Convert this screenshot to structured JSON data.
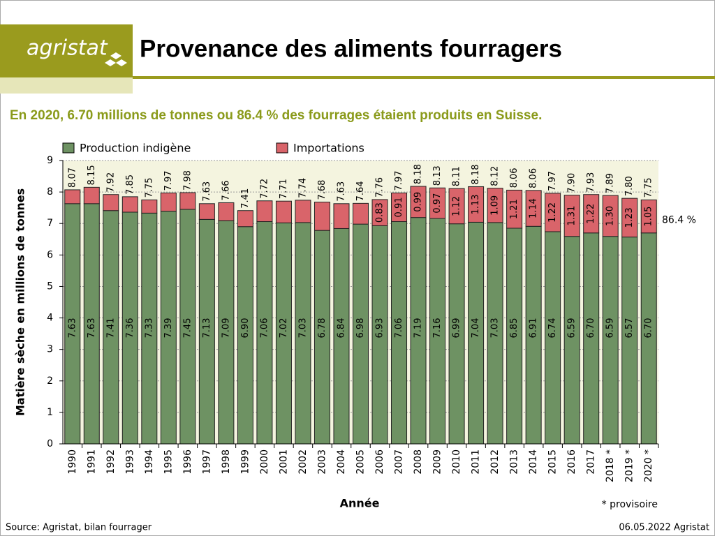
{
  "brand": "agristat",
  "chart_data": {
    "type": "stacked_bar",
    "title": "Provenance des aliments fourragers",
    "subtitle": "En 2020, 6.70 millions de tonnes ou 86.4 % des fourrages étaient produits en Suisse.",
    "ylabel": "Matière sèche en millions de tonnes",
    "xlabel": "Année",
    "categories": [
      "1990",
      "1991",
      "1992",
      "1993",
      "1994",
      "1995",
      "1996",
      "1997",
      "1998",
      "1999",
      "2000",
      "2001",
      "2002",
      "2003",
      "2004",
      "2005",
      "2006",
      "2007",
      "2008",
      "2009",
      "2010",
      "2011",
      "2012",
      "2013",
      "2014",
      "2015",
      "2016",
      "2017",
      "2018 *",
      "2019 *",
      "2020 *"
    ],
    "series": [
      {
        "name": "Production indigène",
        "color": "#6e9263",
        "values": [
          7.63,
          7.63,
          7.41,
          7.36,
          7.33,
          7.39,
          7.45,
          7.13,
          7.09,
          6.9,
          7.06,
          7.02,
          7.03,
          6.78,
          6.84,
          6.98,
          6.93,
          7.06,
          7.19,
          7.16,
          6.99,
          7.04,
          7.03,
          6.85,
          6.91,
          6.74,
          6.59,
          6.7,
          6.59,
          6.57,
          6.7
        ],
        "value_labels": [
          "7.63",
          "7.63",
          "7.41",
          "7.36",
          "7.33",
          "7.39",
          "7.45",
          "7.13",
          "7.09",
          "6.90",
          "7.06",
          "7.02",
          "7.03",
          "6.78",
          "6.84",
          "6.98",
          "6.93",
          "7.06",
          "7.19",
          "7.16",
          "6.99",
          "7.04",
          "7.03",
          "6.85",
          "6.91",
          "6.74",
          "6.59",
          "6.70",
          "6.59",
          "6.57",
          "6.70"
        ]
      },
      {
        "name": "Importations",
        "color": "#d9646a",
        "values": [
          0.44,
          0.52,
          0.51,
          0.49,
          0.42,
          0.58,
          0.53,
          0.5,
          0.57,
          0.51,
          0.66,
          0.69,
          0.71,
          0.9,
          0.79,
          0.66,
          0.83,
          0.91,
          0.99,
          0.97,
          1.12,
          1.13,
          1.09,
          1.21,
          1.14,
          1.22,
          1.31,
          1.22,
          1.3,
          1.23,
          1.05
        ],
        "value_labels": [
          null,
          null,
          null,
          null,
          null,
          null,
          null,
          null,
          null,
          null,
          null,
          null,
          null,
          null,
          null,
          null,
          "0.83",
          "0.91",
          "0.99",
          "0.97",
          "1.12",
          "1.13",
          "1.09",
          "1.21",
          "1.14",
          "1.22",
          "1.31",
          "1.22",
          "1.30",
          "1.23",
          "1.05"
        ]
      }
    ],
    "totals": [
      "8.07",
      "8.15",
      "7.92",
      "7.85",
      "7.75",
      "7.97",
      "7.98",
      "7.63",
      "7.66",
      "7.41",
      "7.72",
      "7.71",
      "7.74",
      "7.68",
      "7.63",
      "7.64",
      "7.76",
      "7.97",
      "8.18",
      "8.13",
      "8.11",
      "8.18",
      "8.12",
      "8.06",
      "8.06",
      "7.97",
      "7.90",
      "7.93",
      "7.89",
      "7.80",
      "7.75"
    ],
    "annotation": "86.4 %",
    "footnote": "* provisoire",
    "ylim": [
      0,
      9
    ],
    "yticks": [
      0,
      1,
      2,
      3,
      4,
      5,
      6,
      7,
      8,
      9
    ],
    "grid": true
  },
  "footer": {
    "source": "Source: Agristat, bilan fourrager",
    "date": "06.05.2022 Agristat"
  }
}
